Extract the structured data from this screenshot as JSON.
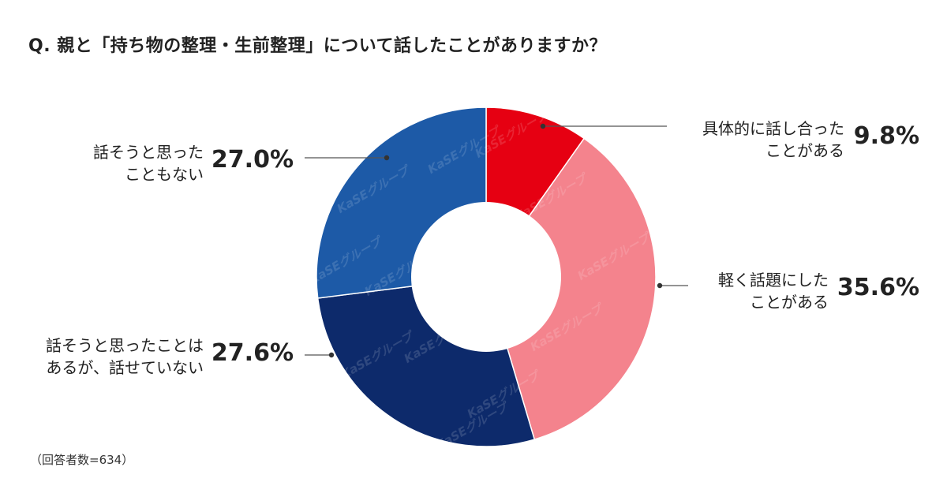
{
  "title": "Q. 親と「持ち物の整理・生前整理」について話したことがありますか？",
  "note": "（回答者数=634）",
  "watermark_text": "KaSEグループ",
  "chart_data": {
    "type": "pie",
    "style": "donut",
    "title": "Q. 親と「持ち物の整理・生前整理」について話したことがありますか？",
    "start_angle_deg": 0,
    "direction": "clockwise",
    "slices": [
      {
        "label_lines": [
          "具体的に話し合った",
          "ことがある"
        ],
        "value": 9.8,
        "value_label": "9.8%",
        "color": "#e60012"
      },
      {
        "label_lines": [
          "軽く話題にした",
          "ことがある"
        ],
        "value": 35.6,
        "value_label": "35.6%",
        "color": "#f4838d"
      },
      {
        "label_lines": [
          "話そうと思ったことは",
          "あるが、話せていない"
        ],
        "value": 27.6,
        "value_label": "27.6%",
        "color": "#0d2a6b"
      },
      {
        "label_lines": [
          "話そうと思った",
          "こともない"
        ],
        "value": 27.0,
        "value_label": "27.0%",
        "color": "#1d5aa7"
      }
    ]
  }
}
